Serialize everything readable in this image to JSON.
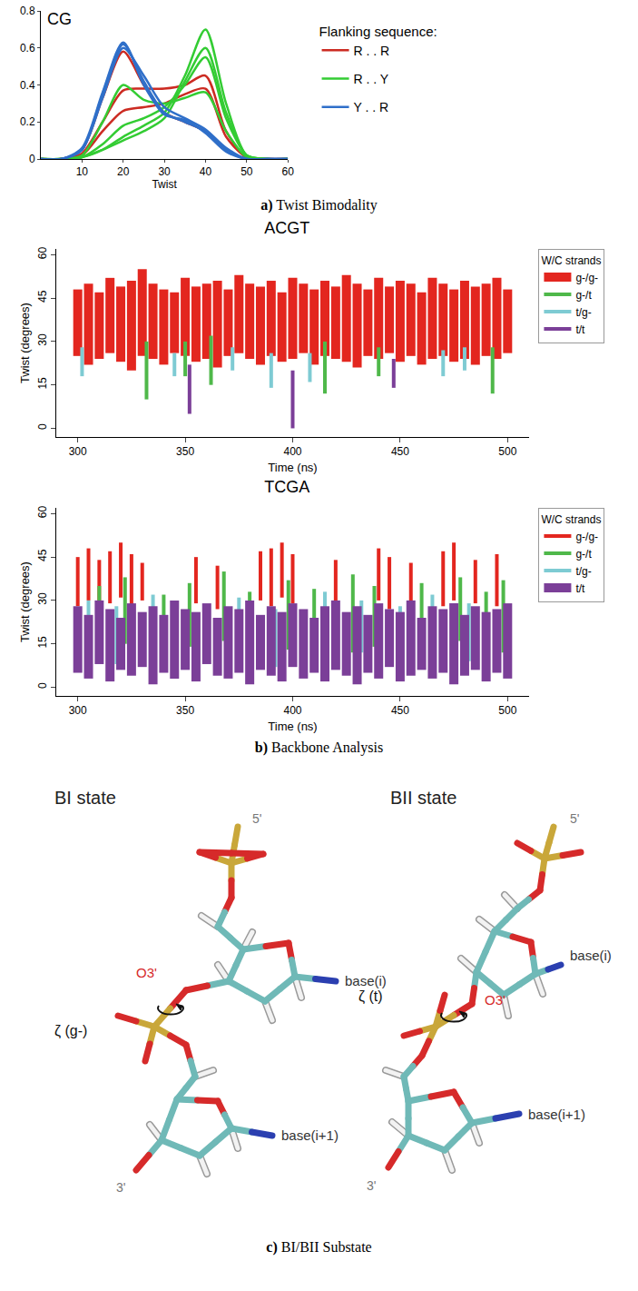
{
  "chart_data": [
    {
      "type": "line",
      "title": "CG",
      "xlabel": "Twist",
      "x": [
        0,
        5,
        10,
        15,
        20,
        25,
        30,
        35,
        40,
        45,
        50,
        55,
        60
      ],
      "xlim": [
        0,
        60
      ],
      "xticks": [
        10,
        20,
        30,
        40,
        50,
        60
      ],
      "ylim": [
        0,
        0.8
      ],
      "yticks": [
        0,
        0.2,
        0.4,
        0.6,
        0.8
      ],
      "grid": false,
      "legend": "right",
      "legend_title": "Flanking sequence:",
      "series": [
        {
          "name": "R . . R",
          "color": "#cc2b22",
          "curves": [
            [
              0,
              0,
              0.05,
              0.33,
              0.58,
              0.4,
              0.25,
              0.2,
              0.15,
              0.05,
              0,
              0,
              0
            ],
            [
              0,
              0,
              0.03,
              0.2,
              0.37,
              0.38,
              0.38,
              0.4,
              0.45,
              0.15,
              0.01,
              0,
              0
            ],
            [
              0,
              0,
              0.02,
              0.15,
              0.26,
              0.28,
              0.3,
              0.35,
              0.38,
              0.12,
              0.01,
              0,
              0
            ]
          ]
        },
        {
          "name": "R . . Y",
          "color": "#33cc33",
          "curves": [
            [
              0,
              0,
              0.01,
              0.05,
              0.12,
              0.18,
              0.25,
              0.45,
              0.7,
              0.3,
              0.02,
              0,
              0
            ],
            [
              0,
              0,
              0.01,
              0.05,
              0.1,
              0.15,
              0.22,
              0.42,
              0.6,
              0.25,
              0.02,
              0,
              0
            ],
            [
              0,
              0,
              0.02,
              0.2,
              0.4,
              0.32,
              0.3,
              0.33,
              0.36,
              0.15,
              0.01,
              0,
              0
            ],
            [
              0,
              0,
              0.01,
              0.08,
              0.18,
              0.22,
              0.28,
              0.4,
              0.55,
              0.22,
              0.02,
              0,
              0
            ]
          ]
        },
        {
          "name": "Y . . R",
          "color": "#2f6fc9",
          "curves": [
            [
              0,
              0,
              0.05,
              0.35,
              0.62,
              0.42,
              0.25,
              0.2,
              0.15,
              0.05,
              0,
              0,
              0
            ],
            [
              0,
              0,
              0.05,
              0.33,
              0.6,
              0.45,
              0.28,
              0.22,
              0.16,
              0.06,
              0,
              0,
              0
            ],
            [
              0,
              0,
              0.06,
              0.36,
              0.63,
              0.4,
              0.24,
              0.21,
              0.14,
              0.04,
              0,
              0,
              0
            ]
          ]
        }
      ]
    },
    {
      "type": "scatter",
      "title": "ACGT",
      "xlabel": "Time (ns)",
      "ylabel": "Twist (degrees)",
      "xlim": [
        290,
        510
      ],
      "xticks": [
        300,
        350,
        400,
        450,
        500
      ],
      "ylim": [
        -3,
        62
      ],
      "yticks": [
        0,
        15,
        30,
        45,
        60
      ],
      "grid": false,
      "legend": "right",
      "legend_title": "W/C strands",
      "series": [
        {
          "name": "g-/g-",
          "color": "#e3261f",
          "x": [
            300,
            305,
            310,
            315,
            320,
            325,
            330,
            335,
            340,
            345,
            350,
            355,
            360,
            365,
            370,
            375,
            380,
            385,
            390,
            395,
            400,
            405,
            410,
            415,
            420,
            425,
            430,
            435,
            440,
            445,
            450,
            455,
            460,
            465,
            470,
            475,
            480,
            485,
            490,
            495,
            500
          ],
          "low": [
            25,
            22,
            24,
            26,
            23,
            20,
            25,
            24,
            22,
            26,
            25,
            23,
            24,
            21,
            25,
            26,
            24,
            22,
            25,
            23,
            24,
            26,
            22,
            25,
            24,
            23,
            21,
            25,
            24,
            26,
            23,
            25,
            22,
            24,
            25,
            23,
            24,
            22,
            25,
            24,
            26
          ],
          "high": [
            48,
            50,
            47,
            52,
            49,
            51,
            55,
            50,
            48,
            47,
            52,
            49,
            50,
            51,
            48,
            53,
            50,
            49,
            51,
            47,
            52,
            50,
            48,
            51,
            49,
            53,
            50,
            48,
            52,
            49,
            51,
            50,
            47,
            52,
            50,
            48,
            51,
            49,
            50,
            52,
            48
          ]
        },
        {
          "name": "g-/t",
          "color": "#4fb84a",
          "x": [
            332,
            350,
            362,
            415,
            440,
            493
          ],
          "low": [
            10,
            18,
            15,
            12,
            18,
            12
          ],
          "high": [
            30,
            30,
            32,
            30,
            28,
            28
          ]
        },
        {
          "name": "t/g-",
          "color": "#7ecbd3",
          "x": [
            302,
            345,
            372,
            390,
            408,
            470,
            480
          ],
          "low": [
            18,
            18,
            20,
            14,
            16,
            18,
            20
          ],
          "high": [
            28,
            26,
            28,
            26,
            26,
            27,
            28
          ]
        },
        {
          "name": "t/t",
          "color": "#7b3f98",
          "x": [
            352,
            400,
            447
          ],
          "low": [
            5,
            0,
            14
          ],
          "high": [
            22,
            20,
            24
          ]
        }
      ]
    },
    {
      "type": "scatter",
      "title": "TCGA",
      "xlabel": "Time (ns)",
      "ylabel": "Twist (degrees)",
      "xlim": [
        290,
        510
      ],
      "xticks": [
        300,
        350,
        400,
        450,
        500
      ],
      "ylim": [
        -3,
        62
      ],
      "yticks": [
        0,
        15,
        30,
        45,
        60
      ],
      "grid": false,
      "legend": "right",
      "legend_title": "W/C strands",
      "series": [
        {
          "name": "g-/g-",
          "color": "#e3261f",
          "x": [
            300,
            305,
            310,
            315,
            320,
            325,
            330,
            355,
            365,
            385,
            390,
            395,
            400,
            420,
            440,
            445,
            455,
            470,
            475,
            485,
            495
          ],
          "low": [
            28,
            30,
            27,
            29,
            31,
            28,
            30,
            29,
            27,
            30,
            28,
            31,
            29,
            28,
            30,
            27,
            29,
            28,
            30,
            29,
            28
          ],
          "high": [
            45,
            48,
            44,
            47,
            50,
            46,
            43,
            45,
            42,
            47,
            48,
            50,
            46,
            44,
            48,
            45,
            43,
            47,
            50,
            44,
            46
          ]
        },
        {
          "name": "g-/t",
          "color": "#4fb84a",
          "x": [
            310,
            322,
            340,
            352,
            368,
            380,
            398,
            410,
            428,
            438,
            460,
            478,
            490,
            498
          ],
          "low": [
            12,
            15,
            10,
            14,
            16,
            11,
            13,
            15,
            12,
            14,
            10,
            16,
            13,
            12
          ],
          "high": [
            35,
            38,
            32,
            36,
            40,
            33,
            37,
            34,
            39,
            35,
            36,
            38,
            33,
            37
          ]
        },
        {
          "name": "t/g-",
          "color": "#7ecbd3",
          "x": [
            305,
            318,
            335,
            345,
            375,
            392,
            415,
            432,
            450,
            465,
            482
          ],
          "low": [
            10,
            8,
            12,
            9,
            11,
            7,
            10,
            12,
            8,
            11,
            9
          ],
          "high": [
            30,
            28,
            32,
            29,
            31,
            27,
            33,
            30,
            28,
            32,
            29
          ]
        },
        {
          "name": "t/t",
          "color": "#7b3f98",
          "x": [
            300,
            305,
            310,
            315,
            320,
            325,
            330,
            335,
            340,
            345,
            350,
            355,
            360,
            365,
            370,
            375,
            380,
            385,
            390,
            395,
            400,
            405,
            410,
            415,
            420,
            425,
            430,
            435,
            440,
            445,
            450,
            455,
            460,
            465,
            470,
            475,
            480,
            485,
            490,
            495,
            500
          ],
          "low": [
            5,
            3,
            8,
            2,
            6,
            4,
            7,
            1,
            5,
            3,
            6,
            2,
            8,
            4,
            3,
            5,
            1,
            6,
            4,
            2,
            7,
            3,
            5,
            2,
            6,
            4,
            1,
            5,
            3,
            7,
            2,
            4,
            6,
            3,
            5,
            1,
            4,
            6,
            2,
            5,
            3
          ],
          "high": [
            28,
            25,
            30,
            27,
            24,
            29,
            26,
            28,
            25,
            30,
            27,
            26,
            29,
            24,
            28,
            27,
            30,
            25,
            28,
            26,
            29,
            27,
            24,
            28,
            30,
            26,
            28,
            25,
            29,
            27,
            26,
            30,
            24,
            28,
            27,
            29,
            25,
            28,
            26,
            27,
            29
          ]
        }
      ]
    }
  ],
  "captions": [
    {
      "label": "a)",
      "text": "Twist Bimodality"
    },
    {
      "label": "b)",
      "text": "Backbone Analysis"
    },
    {
      "label": "c)",
      "text": "BI/BII Substate"
    }
  ],
  "diagram": {
    "structures": [
      {
        "title": "BI state",
        "five_prime": "5'",
        "three_prime": "3'",
        "o3": "O3'",
        "zeta": "ζ (g-)",
        "base_i": "base(i)",
        "base_i1": "base(i+1)"
      },
      {
        "title": "BII state",
        "five_prime": "5'",
        "three_prime": "3'",
        "o3": "O3'",
        "zeta": "ζ (t)",
        "base_i": "base(i)",
        "base_i1": "base(i+1)"
      }
    ]
  }
}
